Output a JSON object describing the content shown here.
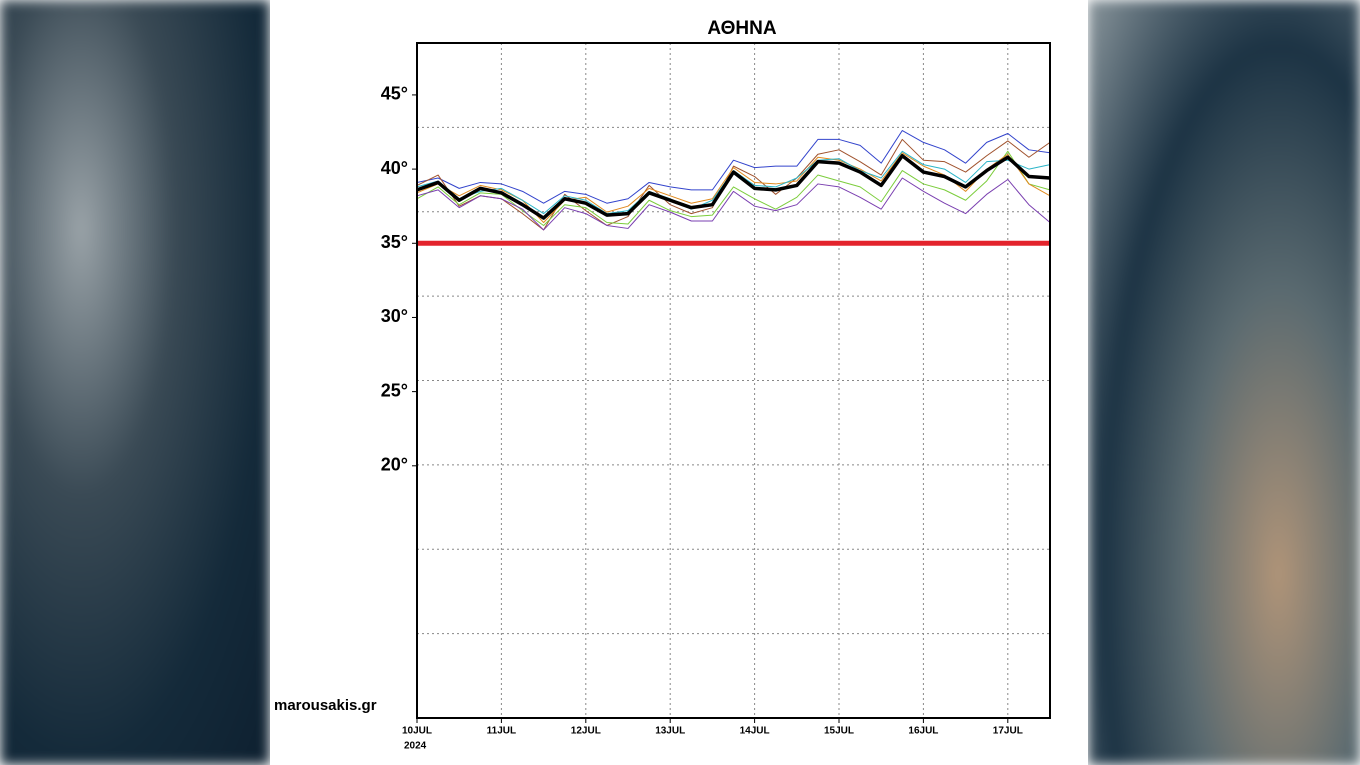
{
  "chart_data": {
    "type": "line",
    "title": "ΑΘΗΝΑ",
    "watermark": "marousakis.gr",
    "x_sublabel": "2024",
    "x": [
      0,
      0.25,
      0.5,
      0.75,
      1,
      1.25,
      1.5,
      1.75,
      2,
      2.25,
      2.5,
      2.75,
      3,
      3.25,
      3.5,
      3.75,
      4,
      4.25,
      4.5,
      4.75,
      5,
      5.25,
      5.5,
      5.75,
      6,
      6.25,
      6.5,
      6.75,
      7,
      7.25,
      7.5
    ],
    "xlim": [
      0,
      7.5
    ],
    "xticks": [
      {
        "value": 0,
        "label": "10JUL"
      },
      {
        "value": 1,
        "label": "11JUL"
      },
      {
        "value": 2,
        "label": "12JUL"
      },
      {
        "value": 3,
        "label": "13JUL"
      },
      {
        "value": 4,
        "label": "14JUL"
      },
      {
        "value": 5,
        "label": "15JUL"
      },
      {
        "value": 6,
        "label": "16JUL"
      },
      {
        "value": 7,
        "label": "17JUL"
      }
    ],
    "ylim": [
      3,
      48.5
    ],
    "yticks": [
      {
        "value": 20,
        "label": "20°"
      },
      {
        "value": 25,
        "label": "25°"
      },
      {
        "value": 30,
        "label": "30°"
      },
      {
        "value": 35,
        "label": "35°"
      },
      {
        "value": 40,
        "label": "40°"
      },
      {
        "value": 45,
        "label": "45°"
      }
    ],
    "threshold": {
      "value": 35,
      "color": "#e3232c"
    },
    "series": [
      {
        "color": "#3344cc",
        "values": [
          39.1,
          39.4,
          38.7,
          39.1,
          39.0,
          38.5,
          37.7,
          38.5,
          38.3,
          37.7,
          38.0,
          39.1,
          38.8,
          38.6,
          38.6,
          40.6,
          40.1,
          40.2,
          40.2,
          42.0,
          42.0,
          41.6,
          40.4,
          42.6,
          41.8,
          41.3,
          40.4,
          41.8,
          42.4,
          41.3,
          41.1
        ]
      },
      {
        "color": "#a0522d",
        "values": [
          38.9,
          39.6,
          37.5,
          38.2,
          38.0,
          37.0,
          35.9,
          38.3,
          37.2,
          36.2,
          36.8,
          38.9,
          37.6,
          37.0,
          37.4,
          40.2,
          39.5,
          38.3,
          39.4,
          41.0,
          41.3,
          40.5,
          39.6,
          42.0,
          40.6,
          40.5,
          39.8,
          40.9,
          41.9,
          40.8,
          41.8
        ]
      },
      {
        "color": "#7ccd3c",
        "values": [
          38.0,
          38.8,
          37.6,
          38.4,
          38.3,
          37.2,
          36.2,
          37.6,
          37.4,
          36.4,
          36.3,
          37.9,
          37.2,
          36.8,
          36.9,
          38.8,
          38.0,
          37.3,
          38.1,
          39.6,
          39.2,
          38.8,
          37.8,
          39.9,
          39.0,
          38.6,
          37.9,
          39.2,
          41.2,
          39.0,
          38.6
        ]
      },
      {
        "color": "#e08a1e",
        "values": [
          38.4,
          39.0,
          38.2,
          38.9,
          38.6,
          37.9,
          36.4,
          37.9,
          38.1,
          37.1,
          37.5,
          38.7,
          38.2,
          37.7,
          38.0,
          40.1,
          39.1,
          39.0,
          39.2,
          40.8,
          40.6,
          40.0,
          39.2,
          41.1,
          40.2,
          39.6,
          38.5,
          40.0,
          41.0,
          39.0,
          38.2
        ]
      },
      {
        "color": "#2bb5c8",
        "values": [
          38.8,
          39.2,
          38.0,
          38.5,
          38.7,
          37.9,
          37.0,
          38.2,
          37.9,
          37.0,
          37.2,
          38.5,
          38.0,
          37.3,
          37.9,
          39.9,
          38.9,
          38.8,
          39.4,
          40.6,
          40.7,
          39.9,
          39.4,
          41.2,
          40.3,
          40.0,
          39.1,
          40.5,
          40.6,
          40.0,
          40.3
        ]
      },
      {
        "color": "#7a3fb0",
        "values": [
          38.2,
          38.6,
          37.4,
          38.2,
          38.0,
          37.3,
          35.9,
          37.4,
          37.0,
          36.2,
          36.0,
          37.6,
          37.1,
          36.5,
          36.5,
          38.5,
          37.5,
          37.2,
          37.6,
          39.0,
          38.8,
          38.1,
          37.3,
          39.4,
          38.5,
          37.7,
          37.0,
          38.3,
          39.3,
          37.6,
          36.4
        ]
      },
      {
        "color": "#000000",
        "values": [
          38.6,
          39.1,
          37.9,
          38.7,
          38.4,
          37.6,
          36.7,
          38.0,
          37.7,
          36.9,
          37.0,
          38.4,
          37.9,
          37.4,
          37.6,
          39.8,
          38.7,
          38.6,
          38.9,
          40.5,
          40.4,
          39.8,
          38.9,
          40.9,
          39.8,
          39.5,
          38.8,
          39.9,
          40.8,
          39.5,
          39.4
        ]
      }
    ]
  }
}
